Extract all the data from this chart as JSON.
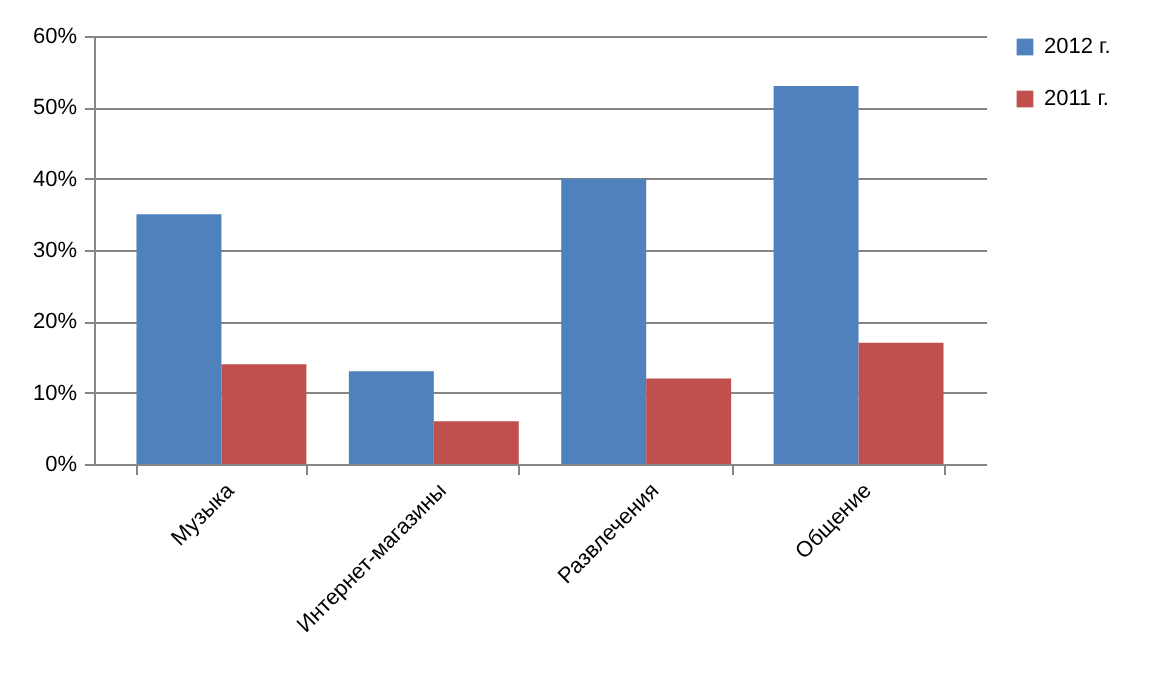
{
  "chart_data": {
    "type": "bar",
    "categories": [
      "Музыка",
      "Интернет-магазины",
      "Развлечения",
      "Общение"
    ],
    "series": [
      {
        "name": "2012 г.",
        "color": "#4f81bd",
        "values": [
          35,
          13,
          40,
          53
        ]
      },
      {
        "name": "2011 г.",
        "color": "#c0504d",
        "values": [
          14,
          6,
          12,
          17
        ]
      }
    ],
    "ylim": [
      0,
      60
    ],
    "yticks": [
      {
        "value": 0,
        "label": "0%"
      },
      {
        "value": 10,
        "label": "10%"
      },
      {
        "value": 20,
        "label": "20%"
      },
      {
        "value": 30,
        "label": "30%"
      },
      {
        "value": 40,
        "label": "40%"
      },
      {
        "value": 50,
        "label": "50%"
      },
      {
        "value": 60,
        "label": "60%"
      }
    ],
    "grid": "y",
    "legend": "right"
  }
}
